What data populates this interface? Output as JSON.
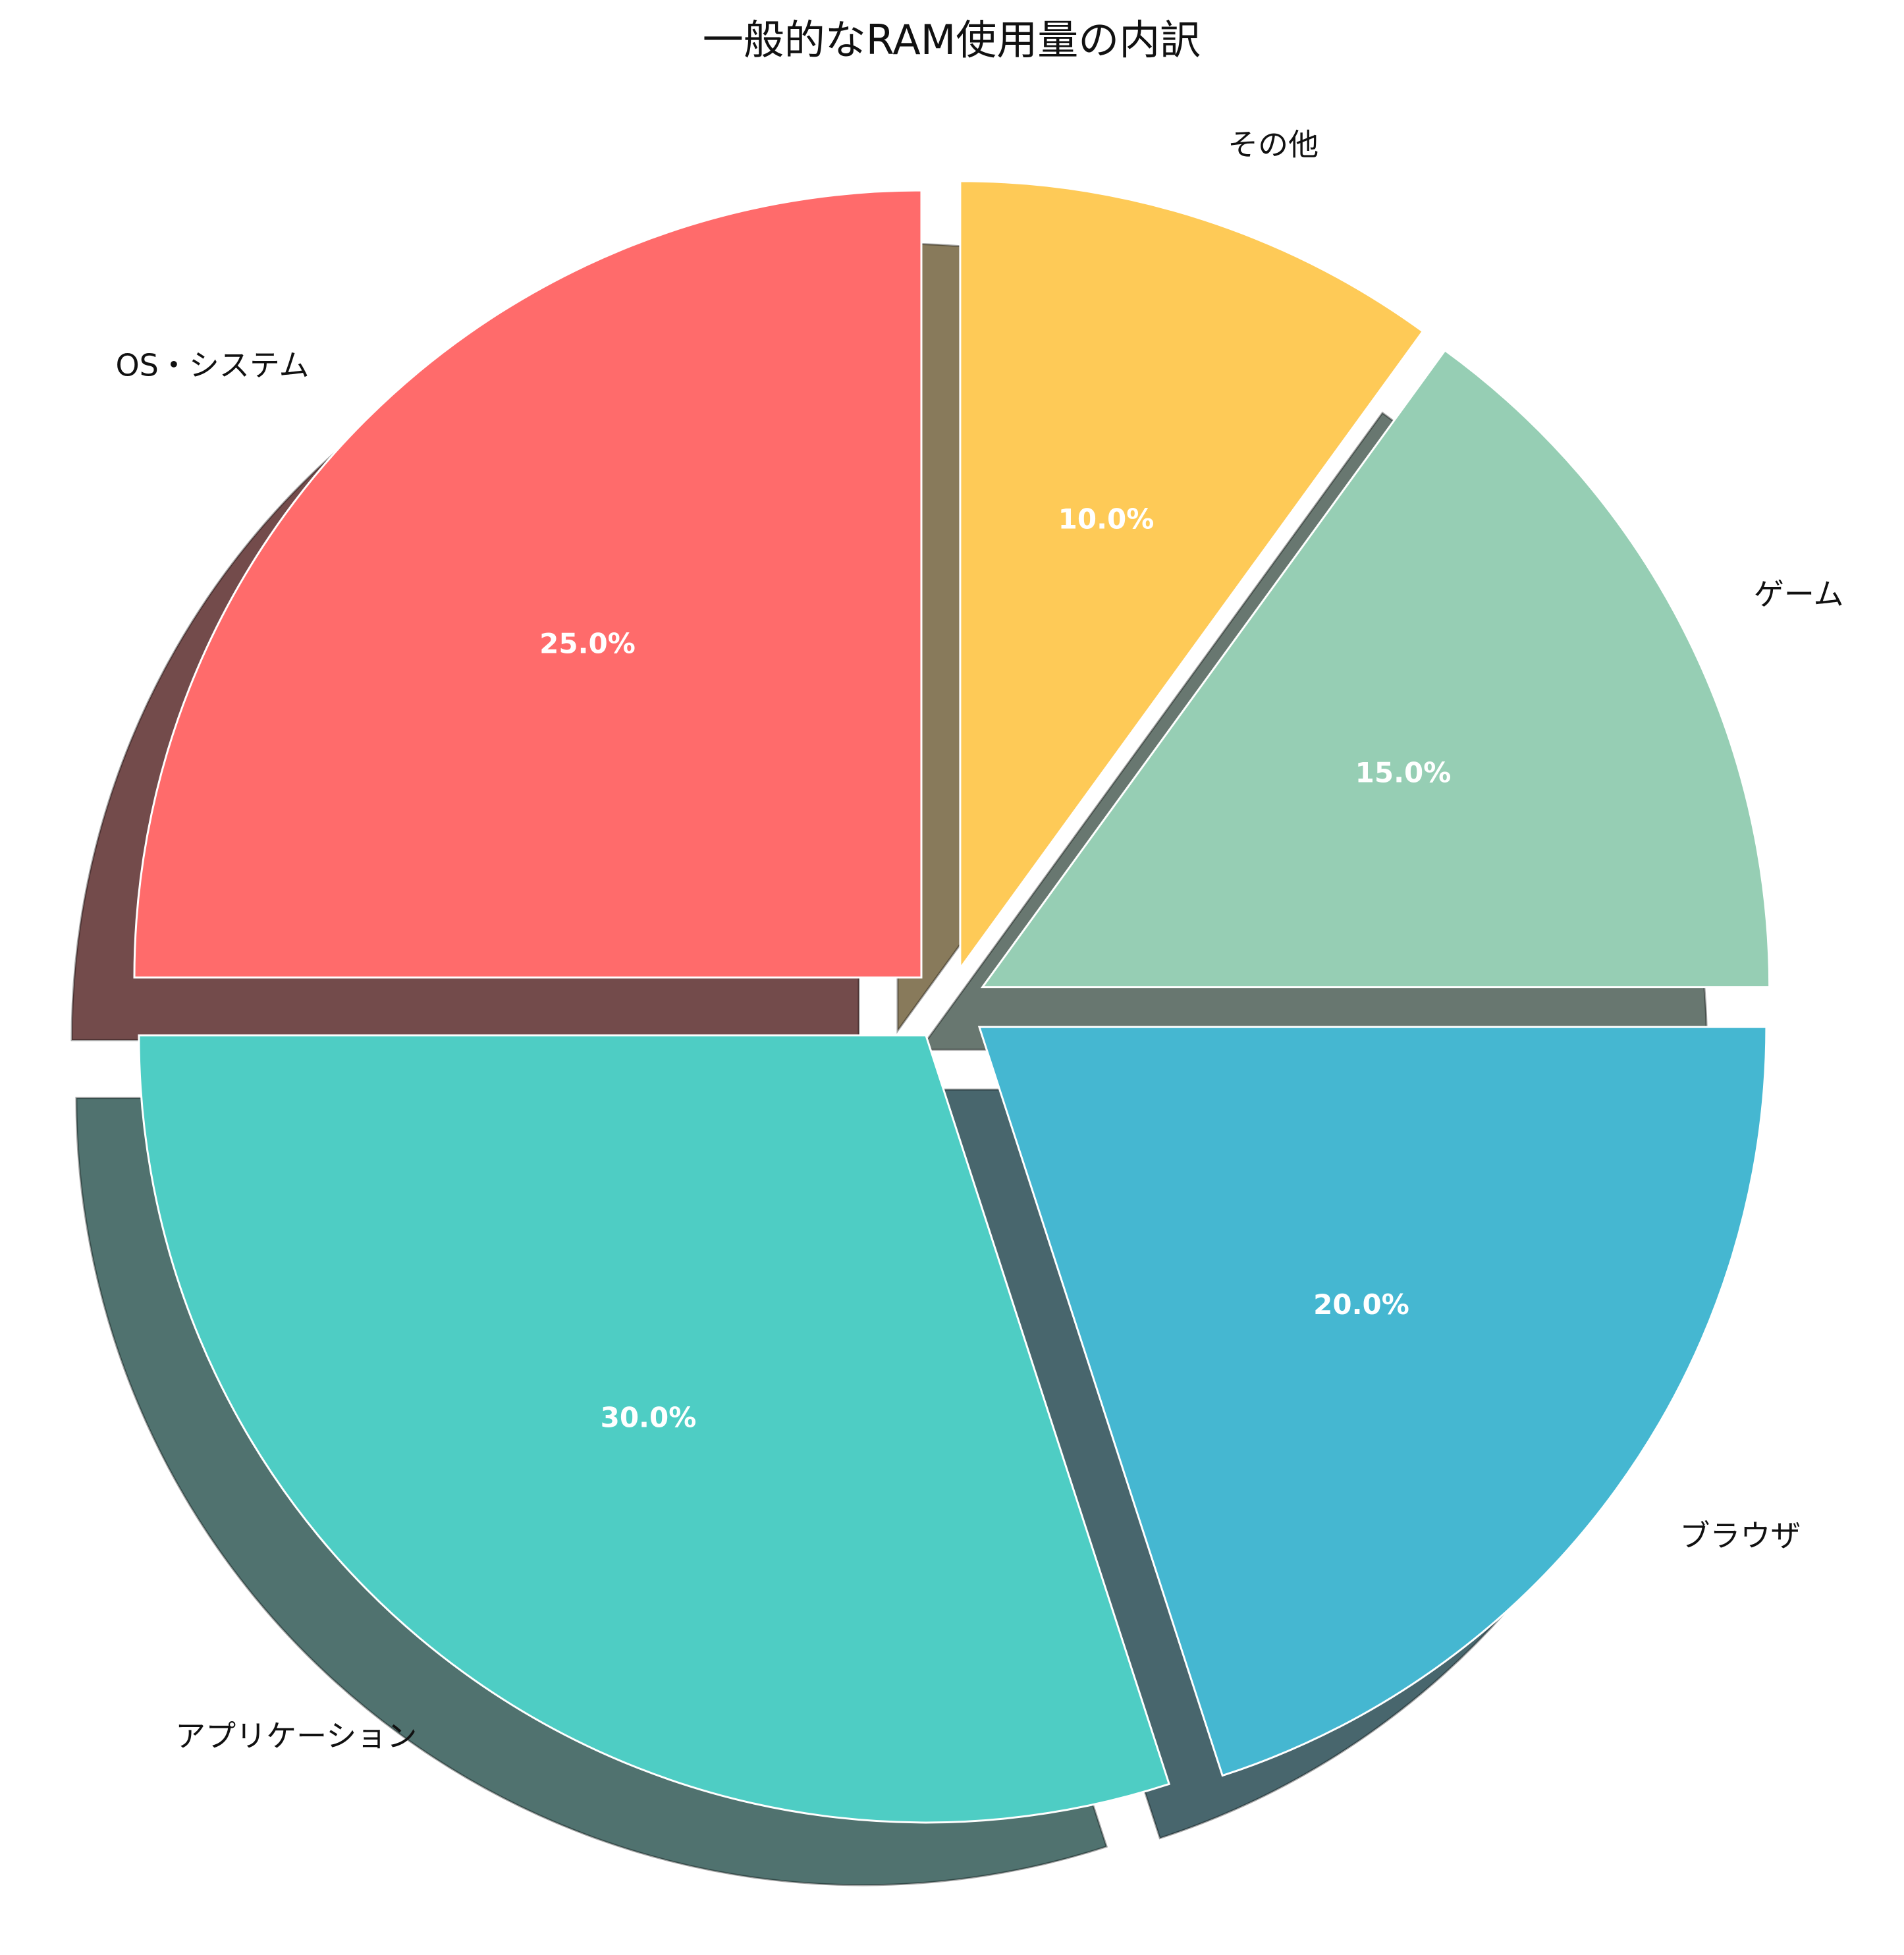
{
  "chart_data": {
    "type": "pie",
    "title": "一般的なRAM使用量の内訳",
    "categories": [
      "OS・システム",
      "アプリケーション",
      "ブラウザ",
      "ゲーム",
      "その他"
    ],
    "values": [
      25,
      30,
      20,
      15,
      10
    ],
    "percent_labels": [
      "25.0%",
      "30.0%",
      "20.0%",
      "15.0%",
      "10.0%"
    ],
    "colors": [
      "#FF6B6B",
      "#4ECDC4",
      "#45B7D1",
      "#96CEB4",
      "#FECA57"
    ],
    "start_angle_deg": 90,
    "direction": "counterclockwise",
    "exploded": true,
    "shadow": true
  }
}
